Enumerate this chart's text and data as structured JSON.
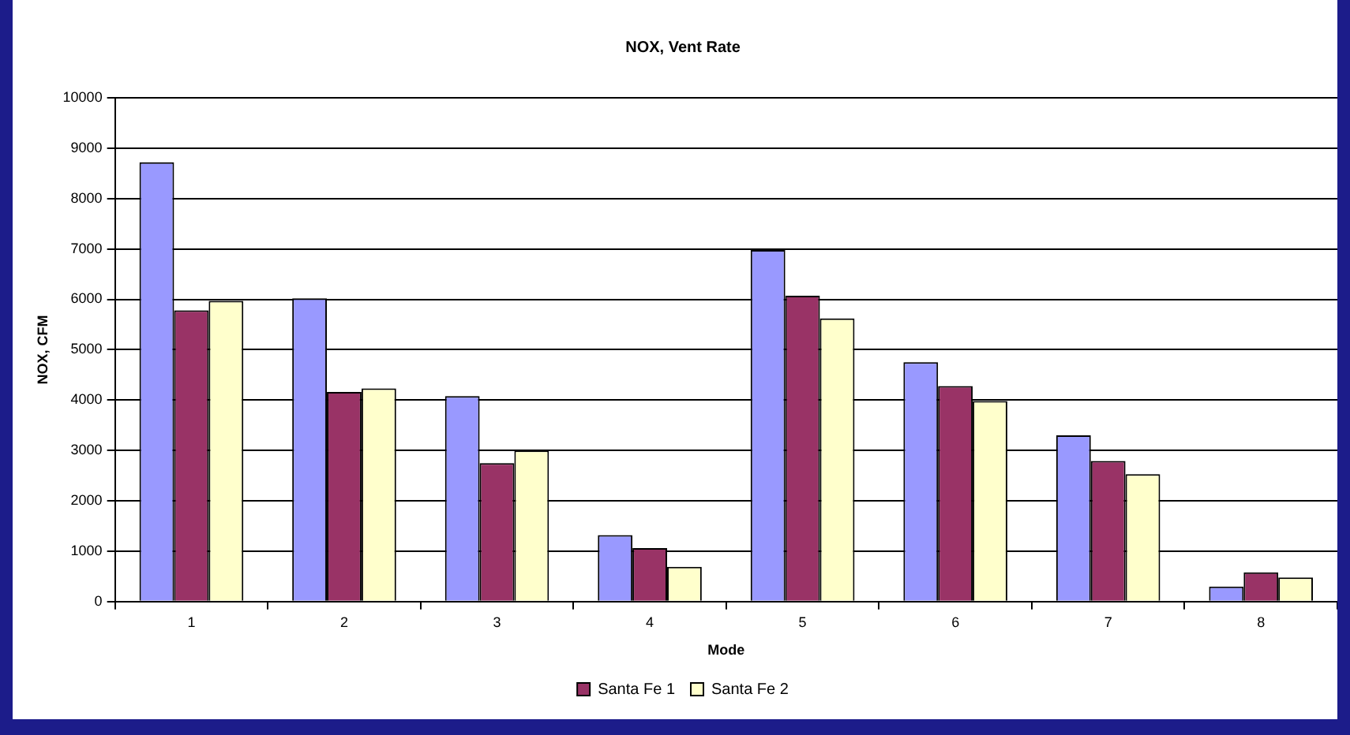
{
  "chart_data": {
    "type": "bar",
    "title": "NOX, Vent Rate",
    "xlabel": "Mode",
    "ylabel": "NOX, CFM",
    "categories": [
      "1",
      "2",
      "3",
      "4",
      "5",
      "6",
      "7",
      "8"
    ],
    "series": [
      {
        "color": "#9999ff",
        "values": [
          8720,
          6020,
          4080,
          1320,
          6980,
          4750,
          3300,
          300
        ]
      },
      {
        "name": "Santa Fe 1",
        "color": "#993366",
        "values": [
          5780,
          4160,
          2750,
          1060,
          6070,
          4280,
          2790,
          580
        ]
      },
      {
        "name": "Santa Fe 2",
        "color": "#ffffcc",
        "values": [
          5970,
          4230,
          3000,
          690,
          5620,
          3980,
          2530,
          480
        ]
      }
    ],
    "ylim": [
      0,
      10000
    ],
    "yticks": [
      0,
      1000,
      2000,
      3000,
      4000,
      5000,
      6000,
      7000,
      8000,
      9000,
      10000
    ],
    "grid": "y",
    "legend": "bottom"
  }
}
